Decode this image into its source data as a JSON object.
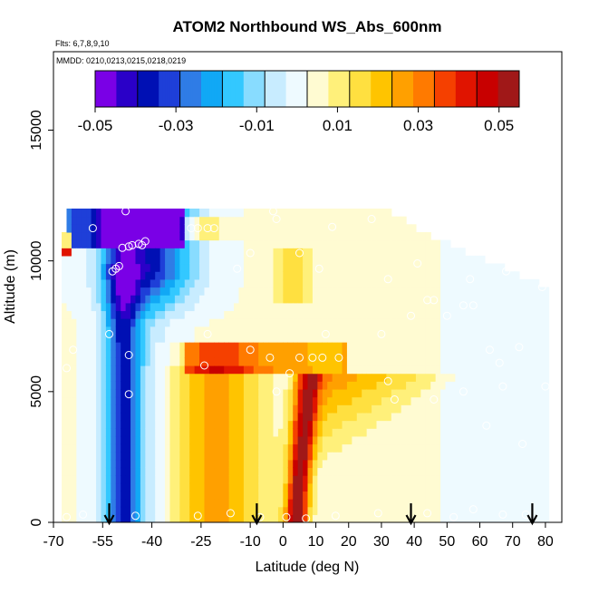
{
  "chart_data": {
    "type": "heatmap",
    "title": "ATOM2 Northbound WS_Abs_600nm",
    "subtitle_flights": "Flts: 6,7,8,9,10",
    "subtitle_dates": "MMDD: 0210,0213,0215,0218,0219",
    "xlabel": "Latitude (deg N)",
    "ylabel": "Altitude (m)",
    "xlim": [
      -70,
      85
    ],
    "ylim": [
      0,
      18000
    ],
    "x_ticks": [
      -70,
      -55,
      -40,
      -25,
      -10,
      0,
      10,
      20,
      30,
      40,
      50,
      60,
      70,
      80
    ],
    "y_ticks": [
      0,
      5000,
      10000,
      15000
    ],
    "colorbar": {
      "min": -0.05,
      "max": 0.055,
      "ticks": [
        -0.05,
        -0.03,
        -0.01,
        0.01,
        0.03,
        0.05
      ],
      "tick_labels": [
        "-0.05",
        "-0.03",
        "-0.01",
        "0.01",
        "0.03",
        "0.05"
      ],
      "colors": [
        "#7a00e6",
        "#2a00c8",
        "#0010b4",
        "#1e3fd8",
        "#2f7ce6",
        "#11a8f5",
        "#33c8ff",
        "#88dcff",
        "#c8ecff",
        "#eefaff",
        "#fffbd2",
        "#fff07a",
        "#ffe040",
        "#ffc400",
        "#ffa000",
        "#ff7a00",
        "#f54000",
        "#e01400",
        "#c80000",
        "#a01818"
      ]
    },
    "arrows_latitude": [
      -53,
      -8,
      39,
      76
    ],
    "sample_points": [
      [
        -48,
        11900
      ],
      [
        -58,
        11250
      ],
      [
        -28,
        11250
      ],
      [
        -26,
        11250
      ],
      [
        -23,
        11250
      ],
      [
        -21,
        11250
      ],
      [
        -3,
        11900
      ],
      [
        -2,
        11600
      ],
      [
        15,
        11300
      ],
      [
        27,
        11600
      ],
      [
        44,
        11600
      ],
      [
        -49,
        10500
      ],
      [
        -47,
        10550
      ],
      [
        -46,
        10600
      ],
      [
        -44,
        10650
      ],
      [
        -43,
        10600
      ],
      [
        -42,
        10750
      ],
      [
        -52,
        9600
      ],
      [
        -51,
        9700
      ],
      [
        -50,
        9800
      ],
      [
        -10,
        10300
      ],
      [
        5,
        10300
      ],
      [
        -14,
        9700
      ],
      [
        11,
        9700
      ],
      [
        32,
        9300
      ],
      [
        41,
        9900
      ],
      [
        57,
        9300
      ],
      [
        68,
        9600
      ],
      [
        79,
        9000
      ],
      [
        44,
        8500
      ],
      [
        46,
        8500
      ],
      [
        39,
        7900
      ],
      [
        50,
        7900
      ],
      [
        55,
        8300
      ],
      [
        58,
        8300
      ],
      [
        -53,
        7200
      ],
      [
        -23,
        7200
      ],
      [
        13,
        7200
      ],
      [
        30,
        7200
      ],
      [
        -10,
        6600
      ],
      [
        -4,
        6300
      ],
      [
        5,
        6300
      ],
      [
        9,
        6300
      ],
      [
        12,
        6300
      ],
      [
        17,
        6300
      ],
      [
        -47,
        6400
      ],
      [
        -64,
        6600
      ],
      [
        -24,
        6000
      ],
      [
        -66,
        5900
      ],
      [
        63,
        6600
      ],
      [
        66,
        6100
      ],
      [
        72,
        6700
      ],
      [
        -2,
        5000
      ],
      [
        2,
        5700
      ],
      [
        -47,
        4900
      ],
      [
        32,
        5400
      ],
      [
        46,
        4700
      ],
      [
        55,
        5000
      ],
      [
        34,
        4700
      ],
      [
        67,
        5200
      ],
      [
        80,
        5200
      ],
      [
        62,
        3700
      ],
      [
        73,
        3000
      ],
      [
        -66,
        200
      ],
      [
        -61,
        300
      ],
      [
        -45,
        250
      ],
      [
        -26,
        250
      ],
      [
        -16,
        350
      ],
      [
        -7,
        200
      ],
      [
        1,
        200
      ],
      [
        7,
        150
      ],
      [
        16,
        250
      ],
      [
        29,
        350
      ],
      [
        44,
        350
      ],
      [
        52,
        200
      ],
      [
        58,
        500
      ],
      [
        67,
        300
      ],
      [
        74,
        300
      ]
    ]
  }
}
